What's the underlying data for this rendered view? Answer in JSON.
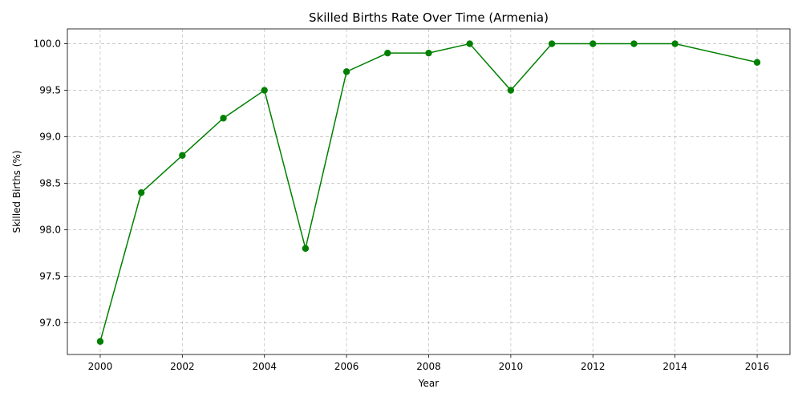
{
  "chart_data": {
    "type": "line",
    "title": "Skilled Births Rate Over Time (Armenia)",
    "xlabel": "Year",
    "ylabel": "Skilled Births (%)",
    "xlim": [
      1999.2,
      2016.8
    ],
    "ylim": [
      96.66,
      100.16
    ],
    "xticks": [
      2000,
      2002,
      2004,
      2006,
      2008,
      2010,
      2012,
      2014,
      2016
    ],
    "yticks": [
      97.0,
      97.5,
      98.0,
      98.5,
      99.0,
      99.5,
      100.0
    ],
    "grid": true,
    "series": [
      {
        "color": "#008000",
        "marker": "circle",
        "x": [
          2000,
          2001,
          2002,
          2003,
          2004,
          2005,
          2006,
          2007,
          2008,
          2009,
          2010,
          2011,
          2012,
          2013,
          2014,
          2016
        ],
        "y": [
          96.8,
          98.4,
          98.8,
          99.2,
          99.5,
          97.8,
          99.7,
          99.9,
          99.9,
          100.0,
          99.5,
          100.0,
          100.0,
          100.0,
          100.0,
          99.8
        ]
      }
    ]
  }
}
